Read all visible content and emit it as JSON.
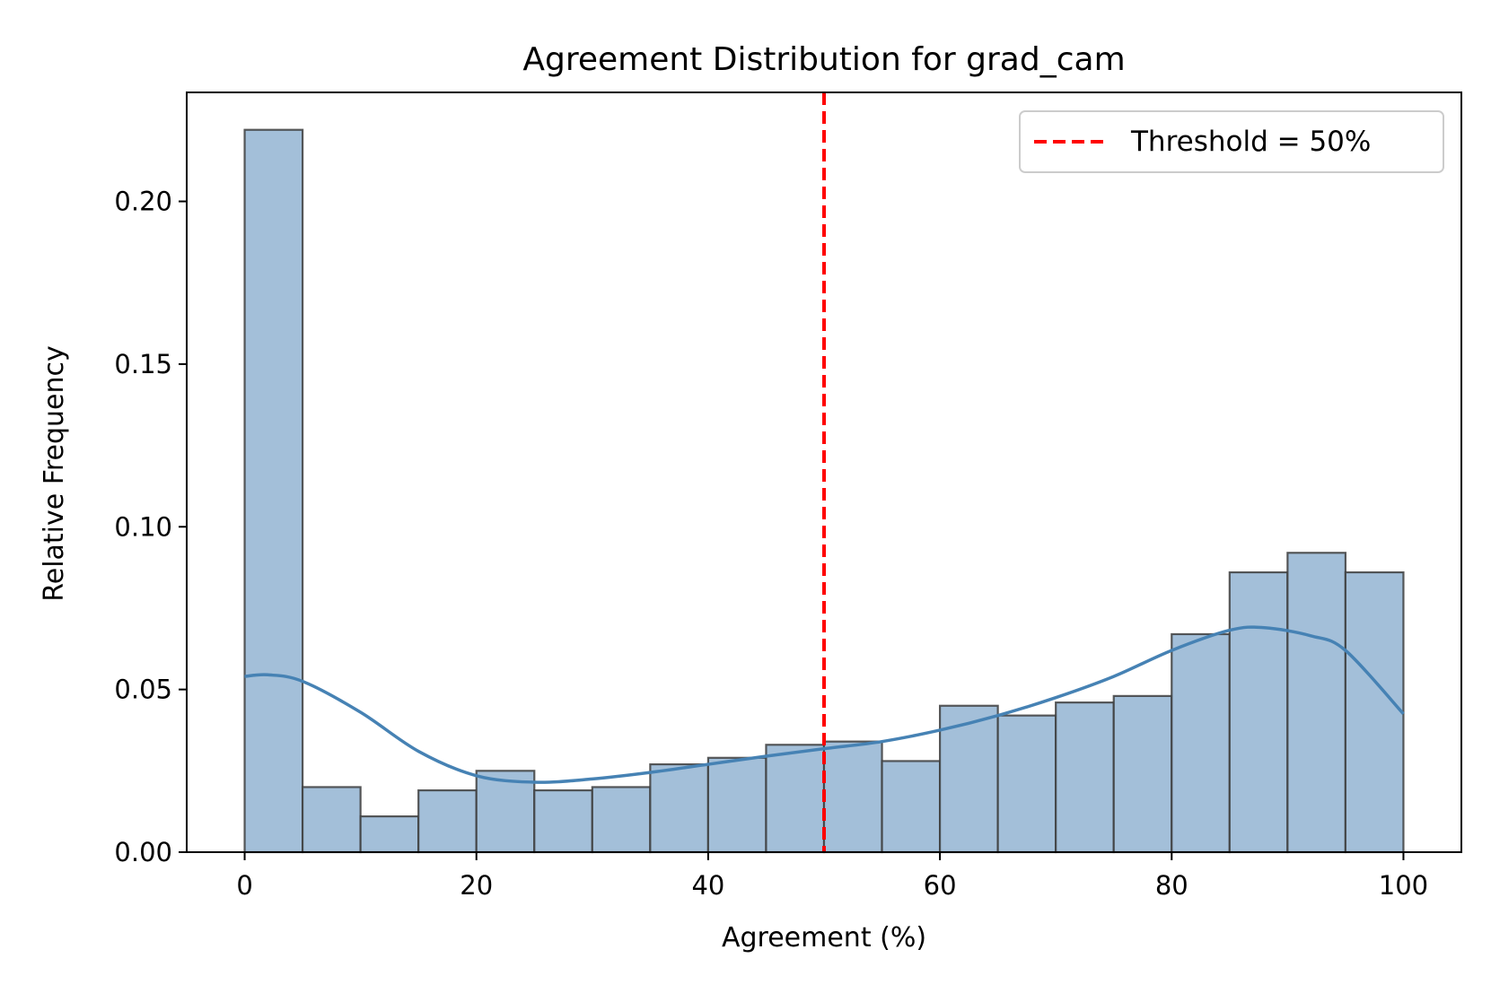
{
  "chart_data": {
    "type": "bar",
    "title": "Agreement Distribution for grad_cam",
    "xlabel": "Agreement (%)",
    "ylabel": "Relative Frequency",
    "xlim": [
      -5,
      105
    ],
    "ylim": [
      0,
      0.2335
    ],
    "x_ticks": [
      0,
      20,
      40,
      60,
      80,
      100
    ],
    "x_tick_labels": [
      "0",
      "20",
      "40",
      "60",
      "80",
      "100"
    ],
    "y_ticks": [
      0,
      0.05,
      0.1,
      0.15,
      0.2
    ],
    "y_tick_labels": [
      "0.00",
      "0.05",
      "0.10",
      "0.15",
      "0.20"
    ],
    "grid": false,
    "bin_edges": [
      0,
      5,
      10,
      15,
      20,
      25,
      30,
      35,
      40,
      45,
      50,
      55,
      60,
      65,
      70,
      75,
      80,
      85,
      90,
      95,
      100
    ],
    "values": [
      0.222,
      0.02,
      0.011,
      0.019,
      0.025,
      0.019,
      0.02,
      0.027,
      0.029,
      0.033,
      0.034,
      0.028,
      0.045,
      0.042,
      0.046,
      0.048,
      0.067,
      0.086,
      0.092,
      0.086
    ],
    "kde": {
      "x": [
        0,
        2,
        5,
        10,
        15,
        20,
        25,
        30,
        35,
        40,
        45,
        50,
        55,
        60,
        65,
        70,
        75,
        80,
        85,
        88,
        92,
        95,
        100
      ],
      "y": [
        0.054,
        0.0545,
        0.0525,
        0.043,
        0.031,
        0.0235,
        0.0215,
        0.0225,
        0.0245,
        0.027,
        0.0295,
        0.0318,
        0.034,
        0.0375,
        0.042,
        0.0475,
        0.054,
        0.062,
        0.0682,
        0.069,
        0.0665,
        0.062,
        0.0425
      ]
    },
    "threshold": {
      "x": 50,
      "label": "Threshold = 50%"
    },
    "legend_position": "top-right",
    "colors": {
      "bar_fill": "#a3bfd9",
      "bar_edge": "#3d3d3d",
      "kde_line": "#4682b4",
      "threshold": "#ff0000"
    }
  }
}
